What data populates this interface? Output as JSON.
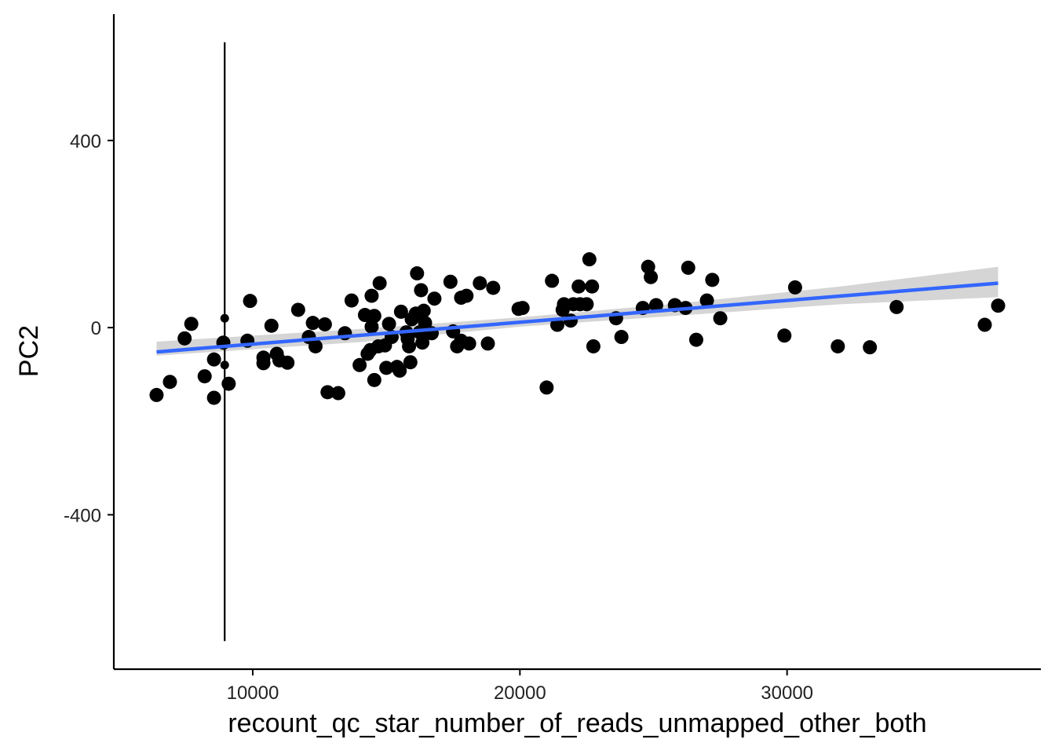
{
  "chart_data": {
    "type": "scatter",
    "title": "",
    "xlabel": "recount_qc_star_number_of_reads_unmapped_other_both",
    "ylabel": "PC2",
    "xlim": [
      4800,
      39500
    ],
    "ylim": [
      -730,
      670
    ],
    "x_ticks": [
      {
        "value": 10000,
        "label": "10000"
      },
      {
        "value": 20000,
        "label": "20000"
      },
      {
        "value": 30000,
        "label": "30000"
      }
    ],
    "y_ticks": [
      {
        "value": 400,
        "label": "400"
      },
      {
        "value": 0,
        "label": "0"
      },
      {
        "value": -400,
        "label": "-400"
      }
    ],
    "grid": false,
    "colors": {
      "points": "#000000",
      "fit_line": "#3366FF",
      "ribbon": "#D3D3D3",
      "axis": "#000000"
    },
    "series": [
      {
        "kind": "points",
        "points": [
          [
            6400,
            -144
          ],
          [
            6900,
            -116
          ],
          [
            7450,
            -23
          ],
          [
            7700,
            8
          ],
          [
            8200,
            -104
          ],
          [
            8550,
            -150
          ],
          [
            8550,
            -68
          ],
          [
            8900,
            -32
          ],
          [
            9100,
            -120
          ],
          [
            9800,
            -28
          ],
          [
            9900,
            57
          ],
          [
            10400,
            -64
          ],
          [
            10400,
            -76
          ],
          [
            10700,
            4
          ],
          [
            10900,
            -56
          ],
          [
            11000,
            -70
          ],
          [
            11300,
            -75
          ],
          [
            11700,
            38
          ],
          [
            12100,
            -20
          ],
          [
            12250,
            10
          ],
          [
            12350,
            -40
          ],
          [
            12700,
            7
          ],
          [
            12800,
            -138
          ],
          [
            13200,
            -140
          ],
          [
            13450,
            -12
          ],
          [
            13700,
            58
          ],
          [
            14000,
            -80
          ],
          [
            14200,
            27
          ],
          [
            14300,
            -56
          ],
          [
            14400,
            -48
          ],
          [
            14450,
            68
          ],
          [
            14450,
            2
          ],
          [
            14550,
            -112
          ],
          [
            14550,
            25
          ],
          [
            14700,
            -40
          ],
          [
            14750,
            95
          ],
          [
            14950,
            -38
          ],
          [
            15000,
            -86
          ],
          [
            15100,
            8
          ],
          [
            15200,
            -20
          ],
          [
            15400,
            -84
          ],
          [
            15500,
            -92
          ],
          [
            15550,
            34
          ],
          [
            15750,
            -10
          ],
          [
            15800,
            -24
          ],
          [
            15850,
            -40
          ],
          [
            15900,
            -74
          ],
          [
            15950,
            18
          ],
          [
            16100,
            30
          ],
          [
            16150,
            116
          ],
          [
            16250,
            -10
          ],
          [
            16300,
            80
          ],
          [
            16350,
            -32
          ],
          [
            16400,
            36
          ],
          [
            16450,
            10
          ],
          [
            16700,
            -12
          ],
          [
            16800,
            62
          ],
          [
            17400,
            98
          ],
          [
            17500,
            -8
          ],
          [
            17650,
            -40
          ],
          [
            17800,
            -28
          ],
          [
            17800,
            64
          ],
          [
            18000,
            68
          ],
          [
            18100,
            -34
          ],
          [
            18500,
            95
          ],
          [
            18800,
            -34
          ],
          [
            19000,
            85
          ],
          [
            19950,
            40
          ],
          [
            20100,
            42
          ],
          [
            21000,
            -128
          ],
          [
            21200,
            100
          ],
          [
            21400,
            6
          ],
          [
            21600,
            38
          ],
          [
            21650,
            50
          ],
          [
            21900,
            15
          ],
          [
            22000,
            50
          ],
          [
            22200,
            88
          ],
          [
            22250,
            50
          ],
          [
            22500,
            50
          ],
          [
            22600,
            146
          ],
          [
            22700,
            88
          ],
          [
            22750,
            -40
          ],
          [
            23600,
            20
          ],
          [
            23800,
            -20
          ],
          [
            24600,
            42
          ],
          [
            24800,
            130
          ],
          [
            24900,
            108
          ],
          [
            25100,
            48
          ],
          [
            25800,
            48
          ],
          [
            26200,
            42
          ],
          [
            26300,
            128
          ],
          [
            26600,
            -26
          ],
          [
            27000,
            58
          ],
          [
            27200,
            102
          ],
          [
            27500,
            20
          ],
          [
            29900,
            -17
          ],
          [
            30300,
            86
          ],
          [
            31900,
            -40
          ],
          [
            33100,
            -42
          ],
          [
            34100,
            44
          ],
          [
            37400,
            6
          ],
          [
            37900,
            47
          ]
        ]
      },
      {
        "kind": "small_points",
        "points": [
          [
            8950,
            20
          ],
          [
            8950,
            -80
          ]
        ]
      },
      {
        "kind": "vline",
        "x": 8950,
        "y_range": [
          -670,
          610
        ]
      },
      {
        "kind": "fit_line",
        "x_range": [
          6400,
          37900
        ],
        "y_range": [
          -52,
          95
        ]
      },
      {
        "kind": "ribbon",
        "x": [
          6400,
          14000,
          20000,
          26000,
          32000,
          37900
        ],
        "upper": [
          -30,
          -3,
          22,
          52,
          88,
          130
        ],
        "lower": [
          -60,
          -31,
          2,
          26,
          50,
          65
        ]
      }
    ]
  }
}
